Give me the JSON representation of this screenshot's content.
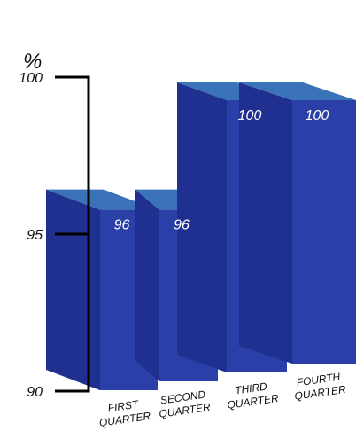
{
  "chart_data": {
    "type": "bar",
    "unit_label": "%",
    "categories": [
      [
        "FIRST",
        "QUARTER"
      ],
      [
        "SECOND",
        "QUARTER"
      ],
      [
        "THIRD",
        "QUARTER"
      ],
      [
        "FOURTH",
        "QUARTER"
      ]
    ],
    "values": [
      96,
      96,
      100,
      100
    ],
    "data_labels": [
      "96",
      "96",
      "100",
      "100"
    ],
    "ylim": [
      90,
      100
    ],
    "y_ticks": [
      {
        "value": 100,
        "label": "100"
      },
      {
        "value": 95,
        "label": "95"
      },
      {
        "value": 90,
        "label": "90"
      }
    ],
    "style": "3d-bar",
    "colors": {
      "front": "#2a3fa8",
      "top": "#3a73b8",
      "side": "#1f3090",
      "axis": "#000000"
    }
  }
}
